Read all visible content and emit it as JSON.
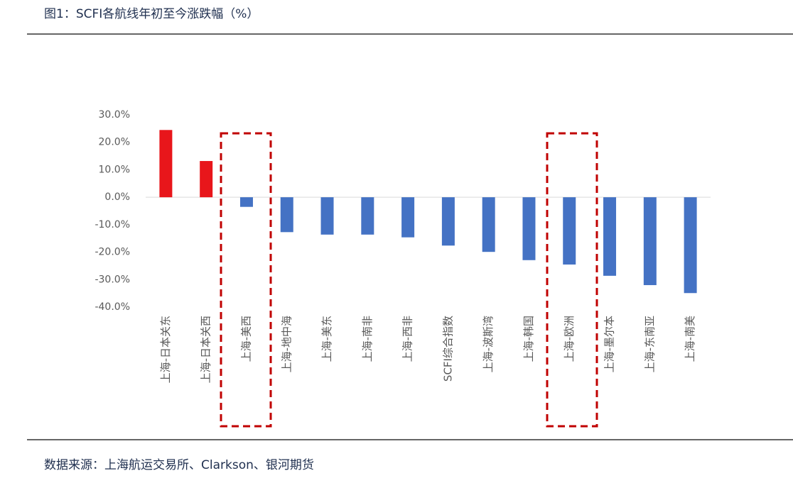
{
  "chart_data": {
    "type": "bar",
    "title": "图1：SCFI各航线年初至今涨跌幅（%）",
    "source": "数据来源：上海航运交易所、Clarkson、银河期货",
    "categories": [
      "上海-日本关东",
      "上海-日本关西",
      "上海-美西",
      "上海-地中海",
      "上海-美东",
      "上海-南非",
      "上海-西非",
      "SCFI综合指数",
      "上海-波斯湾",
      "上海-韩国",
      "上海-欧洲",
      "上海-墨尔本",
      "上海-东南亚",
      "上海-南美"
    ],
    "values": [
      24.5,
      13.2,
      -3.5,
      -12.7,
      -13.6,
      -13.6,
      -14.6,
      -17.6,
      -19.9,
      -22.9,
      -24.5,
      -28.6,
      -32,
      -34.9
    ],
    "positive_color": "#e8161b",
    "negative_color": "#4472c4",
    "ylim": [
      -40,
      30
    ],
    "yticks": [
      {
        "value": -40,
        "label": "-40.0%"
      },
      {
        "value": -30,
        "label": "-30.0%"
      },
      {
        "value": -20,
        "label": "-20.0%"
      },
      {
        "value": -10,
        "label": "-10.0%"
      },
      {
        "value": 0,
        "label": "0.0%"
      },
      {
        "value": 10,
        "label": "10.0%"
      },
      {
        "value": 20,
        "label": "20.0%"
      },
      {
        "value": 30,
        "label": "30.0%"
      }
    ],
    "grid": false
  }
}
